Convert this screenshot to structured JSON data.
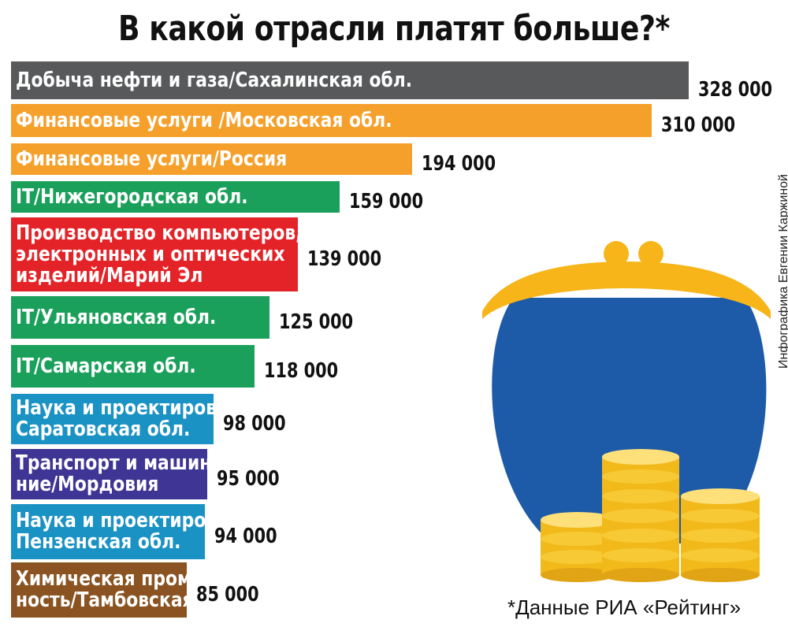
{
  "title": "В какой отрасли платят больше?*",
  "credit": "Инфографика Евгении Каржиной",
  "source": "*Данные РИА «Рейтинг»",
  "chart_data": {
    "type": "bar",
    "orientation": "horizontal",
    "title": "В какой отрасли платят больше?*",
    "categories": [
      "Добыча нефти и газа/Сахалинская обл.",
      "Финансовые услуги /Московская обл.",
      "Финансовые услуги/Россия",
      "IT/Нижегородская обл.",
      "Производство компьютеров,\nэлектронных и оптических\nизделий/Марий Эл",
      "IT/Ульяновская обл.",
      "IT/Самарская обл.",
      "Наука и проектирование/\nСаратовская обл.",
      "Транспорт и машинострое-\nние/Мордовия",
      "Наука и проектирование/\nПензенская обл.",
      "Химическая промышлен-\nность/Тамбовская обл."
    ],
    "values": [
      328000,
      310000,
      194000,
      159000,
      139000,
      125000,
      118000,
      98000,
      95000,
      94000,
      85000
    ],
    "value_labels": [
      "328 000",
      "310 000",
      "194 000",
      "159 000",
      "139 000",
      "125 000",
      "118 000",
      "98 000",
      "95 000",
      "94 000",
      "85 000"
    ],
    "colors": [
      "#58595b",
      "#f5a02a",
      "#f5a02a",
      "#1aa05a",
      "#e42328",
      "#1aa05a",
      "#1aa05a",
      "#1a92c3",
      "#3e3594",
      "#1a92c3",
      "#8a5321"
    ],
    "xlabel": "",
    "ylabel": "",
    "xlim": [
      0,
      328000
    ],
    "grid": false,
    "legend": "none"
  }
}
